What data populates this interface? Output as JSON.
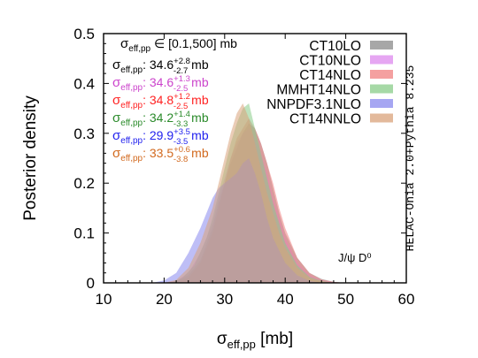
{
  "chart_data": {
    "type": "area",
    "xlabel": "σ",
    "xlabel_sub": "eff,pp",
    "xlabel_unit": " [mb]",
    "ylabel": "Posterior density",
    "xlim": [
      10,
      60
    ],
    "ylim": [
      0,
      0.5
    ],
    "xticks": [
      "10",
      "20",
      "30",
      "40",
      "50",
      "60"
    ],
    "yticks": [
      "0",
      "0.1",
      "0.2",
      "0.3",
      "0.4",
      "0.5"
    ],
    "side_label": "HELAC-Onia 2.0+Pythia 8.235",
    "process_label": "J/ψ D⁰",
    "range_text": {
      "prefix": "σ",
      "sub": "eff,pp",
      "suffix": " ∈ [0.1,500] mb"
    },
    "stats": [
      {
        "color": "#000000",
        "value": "34.6",
        "up": "+2.8",
        "down": "-2.7",
        "unit": " mb"
      },
      {
        "color": "#cc44cc",
        "value": "34.6",
        "up": "+1.3",
        "down": "-2.5",
        "unit": " mb"
      },
      {
        "color": "#ff2222",
        "value": "34.8",
        "up": "+1.2",
        "down": "-2.5",
        "unit": " mb"
      },
      {
        "color": "#2a8a2a",
        "value": "34.2",
        "up": "+1.4",
        "down": "-3.3",
        "unit": " mb"
      },
      {
        "color": "#2222ee",
        "value": "29.9",
        "up": "+3.5",
        "down": "-3.5",
        "unit": " mb"
      },
      {
        "color": "#d2691e",
        "value": "33.5",
        "up": "+0.6",
        "down": "-3.8",
        "unit": " mb"
      }
    ],
    "stat_label": {
      "prefix": "σ",
      "sub": "eff,pp",
      "sep": ": "
    },
    "series": [
      {
        "name": "CT10LO",
        "color": "#8a8a8a",
        "x": [
          20,
          22,
          24,
          26,
          28,
          29,
          30,
          31,
          32,
          33,
          34,
          35,
          36,
          37,
          38,
          39,
          40,
          42,
          44,
          46,
          48,
          50
        ],
        "y": [
          0,
          0.003,
          0.015,
          0.045,
          0.11,
          0.16,
          0.2,
          0.24,
          0.27,
          0.3,
          0.32,
          0.31,
          0.28,
          0.24,
          0.19,
          0.14,
          0.1,
          0.05,
          0.02,
          0.008,
          0.002,
          0
        ]
      },
      {
        "name": "CT10NLO",
        "color": "#dd88ee",
        "x": [
          20,
          22,
          24,
          26,
          28,
          29,
          30,
          31,
          32,
          33,
          34,
          35,
          36,
          37,
          38,
          39,
          40,
          42,
          44,
          46,
          48,
          50
        ],
        "y": [
          0,
          0.004,
          0.02,
          0.06,
          0.12,
          0.17,
          0.21,
          0.25,
          0.28,
          0.3,
          0.31,
          0.29,
          0.26,
          0.22,
          0.17,
          0.13,
          0.09,
          0.04,
          0.015,
          0.005,
          0.001,
          0
        ]
      },
      {
        "name": "CT14NLO",
        "color": "#f08080",
        "x": [
          22,
          24,
          26,
          28,
          29,
          30,
          31,
          32,
          33,
          34,
          35,
          36,
          37,
          38,
          39,
          40,
          42,
          44,
          46,
          48,
          50
        ],
        "y": [
          0,
          0.01,
          0.04,
          0.1,
          0.15,
          0.2,
          0.25,
          0.29,
          0.31,
          0.33,
          0.31,
          0.28,
          0.24,
          0.2,
          0.15,
          0.11,
          0.05,
          0.02,
          0.007,
          0.002,
          0
        ]
      },
      {
        "name": "MMHT14NLO",
        "color": "#88cc88",
        "x": [
          21,
          23,
          25,
          27,
          28,
          29,
          30,
          31,
          32,
          33,
          34,
          35,
          36,
          37,
          38,
          39,
          40,
          42,
          44,
          46,
          48
        ],
        "y": [
          0,
          0.01,
          0.035,
          0.09,
          0.13,
          0.18,
          0.23,
          0.28,
          0.32,
          0.35,
          0.36,
          0.31,
          0.26,
          0.21,
          0.16,
          0.12,
          0.08,
          0.035,
          0.012,
          0.004,
          0
        ]
      },
      {
        "name": "NNPDF3.1NLO",
        "color": "#8888ee",
        "x": [
          18,
          20,
          22,
          24,
          26,
          27,
          28,
          29,
          30,
          31,
          32,
          33,
          34,
          35,
          36,
          37,
          38,
          40,
          42,
          44,
          46
        ],
        "y": [
          0,
          0.005,
          0.02,
          0.06,
          0.11,
          0.14,
          0.17,
          0.19,
          0.2,
          0.21,
          0.22,
          0.24,
          0.25,
          0.22,
          0.18,
          0.13,
          0.09,
          0.04,
          0.015,
          0.004,
          0
        ]
      },
      {
        "name": "CT14NNLO",
        "color": "#d9a27a",
        "x": [
          20,
          22,
          24,
          26,
          28,
          29,
          30,
          31,
          32,
          33,
          34,
          35,
          36,
          37,
          38,
          39,
          40,
          42,
          44,
          46,
          48
        ],
        "y": [
          0,
          0.006,
          0.03,
          0.08,
          0.15,
          0.2,
          0.25,
          0.3,
          0.34,
          0.36,
          0.33,
          0.28,
          0.23,
          0.18,
          0.14,
          0.1,
          0.07,
          0.03,
          0.01,
          0.003,
          0
        ]
      }
    ]
  }
}
